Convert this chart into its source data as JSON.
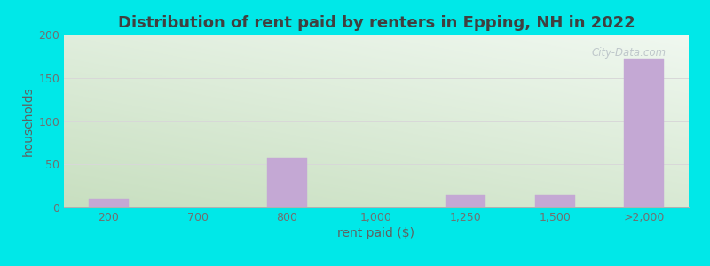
{
  "title": "Distribution of rent paid by renters in Epping, NH in 2022",
  "xlabel": "rent paid ($)",
  "ylabel": "households",
  "categories": [
    "200",
    "700",
    "800",
    "1,000",
    "1,250",
    "1,500",
    ">2,000"
  ],
  "values": [
    10,
    0,
    57,
    0,
    14,
    14,
    172
  ],
  "bar_color": "#c4a8d4",
  "ylim": [
    0,
    200
  ],
  "yticks": [
    0,
    50,
    100,
    150,
    200
  ],
  "background_color": "#00e8e8",
  "grad_top_left": "#c8dfc0",
  "grad_bottom_right": "#f0f8f0",
  "title_color": "#404040",
  "axis_label_color": "#606060",
  "tick_color": "#707070",
  "grid_color": "#d8d8d8",
  "title_fontsize": 13,
  "label_fontsize": 10,
  "tick_fontsize": 9,
  "bar_width": 0.45,
  "watermark_text": "City-Data.com",
  "watermark_color": "#b0b8c0",
  "watermark_alpha": 0.75
}
